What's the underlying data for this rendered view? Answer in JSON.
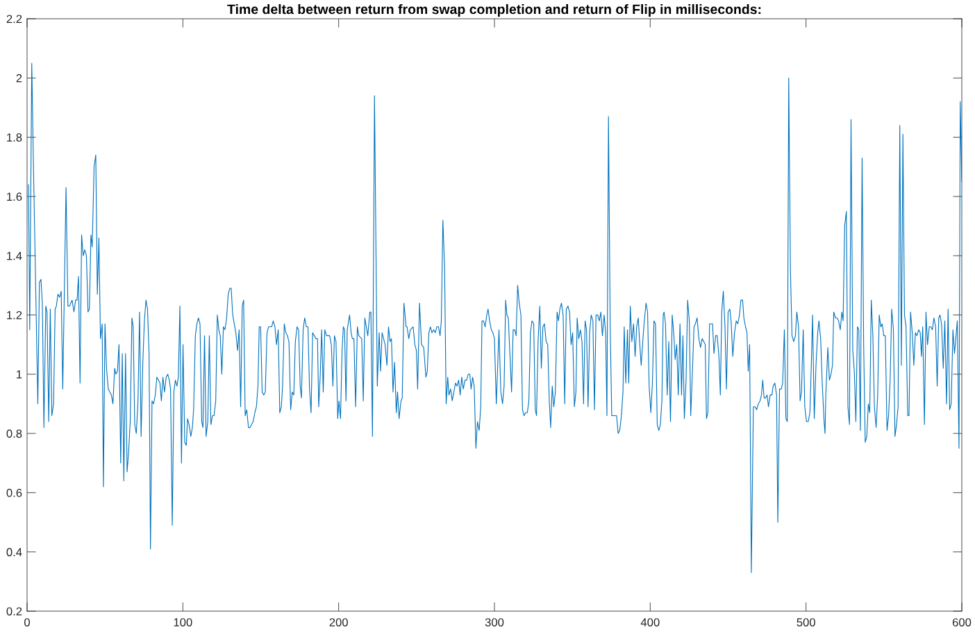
{
  "chart_data": {
    "type": "line",
    "title": "Time delta between return from swap completion and return of Flip in milliseconds:",
    "x": [
      0.9,
      1.7,
      3.0,
      4.2,
      6.9,
      7.9,
      8.9,
      9.8,
      10.8,
      12.0,
      12.8,
      13.9,
      14.9,
      15.9,
      17.0,
      18.0,
      18.8,
      19.8,
      20.9,
      21.9,
      22.9,
      25.0,
      26.2,
      27.2,
      28.9,
      30.1,
      31.1,
      32.1,
      33.0,
      34.0,
      35.0,
      36.0,
      37.0,
      38.1,
      39.1,
      40.0,
      41.0,
      41.8,
      43.0,
      44.1,
      45.1,
      46.1,
      47.1,
      48.2,
      49.0,
      50.0,
      51.0,
      52.1,
      53.1,
      54.1,
      55.1,
      56.2,
      57.0,
      58.0,
      59.0,
      60.1,
      61.1,
      62.1,
      63.2,
      64.2,
      65.2,
      66.2,
      67.3,
      68.1,
      69.1,
      70.1,
      71.2,
      72.2,
      73.2,
      74.3,
      75.3,
      76.3,
      77.3,
      78.3,
      79.2,
      80.2,
      81.2,
      82.3,
      83.3,
      84.3,
      85.3,
      86.2,
      87.2,
      88.2,
      89.3,
      90.3,
      91.3,
      92.1,
      93.2,
      94.2,
      95.2,
      96.2,
      97.1,
      98.1,
      99.1,
      100.1,
      101.2,
      102.2,
      103.0,
      104.0,
      105.1,
      106.1,
      106.9,
      108.0,
      109.0,
      110.0,
      111.0,
      112.1,
      112.9,
      113.9,
      114.9,
      116.0,
      117.0,
      118.0,
      119.0,
      120.0,
      121.1,
      122.1,
      123.1,
      124.0,
      125.0,
      126.0,
      127.0,
      128.1,
      129.1,
      130.1,
      131.0,
      132.0,
      133.0,
      134.0,
      135.1,
      136.1,
      137.1,
      138.1,
      139.0,
      140.0,
      141.0,
      142.1,
      143.1,
      144.1,
      145.1,
      146.2,
      147.2,
      148.2,
      149.0,
      149.9,
      150.9,
      151.9,
      152.9,
      154.0,
      155.0,
      156.0,
      157.0,
      158.0,
      159.1,
      160.1,
      161.2,
      162.2,
      163.2,
      164.0,
      165.1,
      166.1,
      167.1,
      168.1,
      169.2,
      170.2,
      171.2,
      172.2,
      173.3,
      174.3,
      175.3,
      176.1,
      177.2,
      178.2,
      179.3,
      180.3,
      181.3,
      182.3,
      183.3,
      184.4,
      185.4,
      186.4,
      187.2,
      188.2,
      189.1,
      190.1,
      191.1,
      192.2,
      193.2,
      194.2,
      195.3,
      196.3,
      197.3,
      198.3,
      199.4,
      200.2,
      201.2,
      202.2,
      203.0,
      203.8,
      204.7,
      205.5,
      207.0,
      208.0,
      208.8,
      209.8,
      210.9,
      212.0,
      212.9,
      214.8,
      215.8,
      216.8,
      218.7,
      220.0,
      220.7,
      221.7,
      223.0,
      224.8,
      226.0,
      226.9,
      227.9,
      229.8,
      231.0,
      232.0,
      233.0,
      233.9,
      234.9,
      235.9,
      237.0,
      237.8,
      238.8,
      240.0,
      240.8,
      241.9,
      243.3,
      243.9,
      245.0,
      246.0,
      247.8,
      248.9,
      249.9,
      250.7,
      251.9,
      253.2,
      254.6,
      256.0,
      256.9,
      257.9,
      258.9,
      259.9,
      261.0,
      262.0,
      263.0,
      264.1,
      265.1,
      265.9,
      266.9,
      268.0,
      269.0,
      270.0,
      270.8,
      271.9,
      272.9,
      275.0,
      276.0,
      277.0,
      278.0,
      279.0,
      280.0,
      281.1,
      282.1,
      283.2,
      284.2,
      285.0,
      286.0,
      287.0,
      288.1,
      289.1,
      290.2,
      291.2,
      292.0,
      293.0,
      294.0,
      295.1,
      295.9,
      296.9,
      298.0,
      299.0,
      300.0,
      301.2,
      302.9,
      304.1,
      305.2,
      306.2,
      307.2,
      308.0,
      308.9,
      310.0,
      311.0,
      312.0,
      313.0,
      313.9,
      314.9,
      315.9,
      317.0,
      318.0,
      319.0,
      320.0,
      321.1,
      322.1,
      323.1,
      324.1,
      325.2,
      326.2,
      327.0,
      328.0,
      329.1,
      330.1,
      331.1,
      332.1,
      333.2,
      334.2,
      335.2,
      336.1,
      337.1,
      338.1,
      339.1,
      340.2,
      341.1,
      342.0,
      343.0,
      344.1,
      345.1,
      346.1,
      347.2,
      348.2,
      349.2,
      350.2,
      351.3,
      352.3,
      353.1,
      354.1,
      355.2,
      356.2,
      357.2,
      358.2,
      359.1,
      360.1,
      361.1,
      362.1,
      363.2,
      364.2,
      365.2,
      366.3,
      367.3,
      368.3,
      369.3,
      370.4,
      371.4,
      372.2,
      373.2,
      374.3,
      375.3,
      376.3,
      377.4,
      378.4,
      379.4,
      380.4,
      381.5,
      382.5,
      383.3,
      384.3,
      385.4,
      386.2,
      387.2,
      388.2,
      389.3,
      390.3,
      391.3,
      392.3,
      393.3,
      394.2,
      395.2,
      396.2,
      397.3,
      398.3,
      399.3,
      400.4,
      401.4,
      402.4,
      403.4,
      404.5,
      405.5,
      406.5,
      407.5,
      408.3,
      408.9,
      409.8,
      410.9,
      411.9,
      413.0,
      414.1,
      415.2,
      416.0,
      417.0,
      418.0,
      419.1,
      420.1,
      421.0,
      421.9,
      423.0,
      424.0,
      425.1,
      426.0,
      427.1,
      428.1,
      429.0,
      430.1,
      431.2,
      432.3,
      433.3,
      434.4,
      435.3,
      436.1,
      437.0,
      438.1,
      439.2,
      440.0,
      440.9,
      442.0,
      443.0,
      444.1,
      445.0,
      445.9,
      446.9,
      448.0,
      448.9,
      450.0,
      451.1,
      451.9,
      453.0,
      454.1,
      455.2,
      456.2,
      457.3,
      458.2,
      459.3,
      460.1,
      461.2,
      462.1,
      462.9,
      463.8,
      464.9,
      466.2,
      467.3,
      468.3,
      469.4,
      470.5,
      471.4,
      472.2,
      473.1,
      474.0,
      475.0,
      475.9,
      477.0,
      478.1,
      478.9,
      480.0,
      481.1,
      481.9,
      483.0,
      484.1,
      485.0,
      486.1,
      487.1,
      488.0,
      488.9,
      490.0,
      491.0,
      492.1,
      493.2,
      494.1,
      495.2,
      496.2,
      497.1,
      498.2,
      499.2,
      500.3,
      501.4,
      502.5,
      503.4,
      504.2,
      505.3,
      506.4,
      507.5,
      508.3,
      509.4,
      510.4,
      511.6,
      512.2,
      512.7,
      514.0,
      515.0,
      516.0,
      517.0,
      517.8,
      518.9,
      519.9,
      520.9,
      522.0,
      523.0,
      523.8,
      524.8,
      525.9,
      526.9,
      527.9,
      528.9,
      530.0,
      531.0,
      532.0,
      533.0,
      533.9,
      534.9,
      536.0,
      537.0,
      538.0,
      539.0,
      540.0,
      540.9,
      541.9,
      542.9,
      543.9,
      545.0,
      546.0,
      547.0,
      548.0,
      548.9,
      549.9,
      550.9,
      552.0,
      553.0,
      554.0,
      555.0,
      556.1,
      557.1,
      558.1,
      559.1,
      560.2,
      561.2,
      562.2,
      563.2,
      564.2,
      565.3,
      566.1,
      567.1,
      568.2,
      569.2,
      570.2,
      571.2,
      572.3,
      573.3,
      574.1,
      574.9,
      576.0,
      577.0,
      578.0,
      579.1,
      580.1,
      581.1,
      582.1,
      583.2,
      584.2,
      585.2,
      586.0,
      587.0,
      588.1,
      589.1,
      590.2,
      591.2,
      592.2,
      593.2,
      594.3,
      595.3,
      596.3,
      597.1,
      598.2,
      599.0,
      600.0
    ],
    "series": [
      {
        "color": "#0072bd",
        "values": [
          1.64,
          1.15,
          2.05,
          1.67,
          0.9,
          1.31,
          1.32,
          1.24,
          0.82,
          1.23,
          1.21,
          0.84,
          1.22,
          0.86,
          0.9,
          1.22,
          1.23,
          1.27,
          1.26,
          1.28,
          0.95,
          1.63,
          1.23,
          1.23,
          1.25,
          1.21,
          1.25,
          1.25,
          1.33,
          0.97,
          1.47,
          1.4,
          1.42,
          1.4,
          1.21,
          1.22,
          1.47,
          1.43,
          1.7,
          1.74,
          1.27,
          1.46,
          1.12,
          1.17,
          0.62,
          1.17,
          1.02,
          0.95,
          0.94,
          0.93,
          0.9,
          1.02,
          1.0,
          1.01,
          1.1,
          0.7,
          1.07,
          0.64,
          1.07,
          0.67,
          0.74,
          0.84,
          1.19,
          1.16,
          0.83,
          0.8,
          0.91,
          1.21,
          0.79,
          1.04,
          1.18,
          1.25,
          1.22,
          1.07,
          0.41,
          0.91,
          0.9,
          0.93,
          0.99,
          0.98,
          0.97,
          0.91,
          0.99,
          0.94,
          0.99,
          1.0,
          0.98,
          0.95,
          0.49,
          0.94,
          0.98,
          0.96,
          0.99,
          1.23,
          0.7,
          1.1,
          0.77,
          0.76,
          0.85,
          0.83,
          0.79,
          0.82,
          0.88,
          1.13,
          1.17,
          1.19,
          1.17,
          0.84,
          0.82,
          1.13,
          0.79,
          0.84,
          1.13,
          0.83,
          0.86,
          0.86,
          0.91,
          1.2,
          1.15,
          1.13,
          1.0,
          1.16,
          1.15,
          1.19,
          1.27,
          1.29,
          1.29,
          1.2,
          1.17,
          1.14,
          1.08,
          1.15,
          0.89,
          1.23,
          1.25,
          0.86,
          0.88,
          0.82,
          0.82,
          0.83,
          0.84,
          0.87,
          0.89,
          0.96,
          1.16,
          1.16,
          0.94,
          0.93,
          0.94,
          1.14,
          1.16,
          1.16,
          1.16,
          1.18,
          1.16,
          1.1,
          1.15,
          0.87,
          0.89,
          0.96,
          1.17,
          1.14,
          1.13,
          1.11,
          0.88,
          0.94,
          0.93,
          1.11,
          1.16,
          1.15,
          0.96,
          0.92,
          1.15,
          1.19,
          1.16,
          1.16,
          0.95,
          0.87,
          1.14,
          1.13,
          1.12,
          1.12,
          0.89,
          1.0,
          1.15,
          0.94,
          1.15,
          1.13,
          1.13,
          1.13,
          1.1,
          0.96,
          1.13,
          1.11,
          0.85,
          0.91,
          0.85,
          1.08,
          1.16,
          1.15,
          0.91,
          1.15,
          1.2,
          1.14,
          1.12,
          1.12,
          0.89,
          1.16,
          1.13,
          1.12,
          0.91,
          1.19,
          1.13,
          1.21,
          1.21,
          0.79,
          1.94,
          0.96,
          1.14,
          1.01,
          1.14,
          1.1,
          1.03,
          1.16,
          1.11,
          1.12,
          0.94,
          1.04,
          0.87,
          0.94,
          0.85,
          0.91,
          0.92,
          1.24,
          1.16,
          1.16,
          1.12,
          1.15,
          1.16,
          1.1,
          1.08,
          0.95,
          1.24,
          1.1,
          1.09,
          0.99,
          1.01,
          1.14,
          1.16,
          1.14,
          1.15,
          1.14,
          1.16,
          1.16,
          1.13,
          1.18,
          1.52,
          1.36,
          0.9,
          0.99,
          0.93,
          0.95,
          0.91,
          0.97,
          0.96,
          0.98,
          0.93,
          0.99,
          0.95,
          0.98,
          0.98,
          1.0,
          1.0,
          0.95,
          0.99,
          0.96,
          0.75,
          0.84,
          0.81,
          0.89,
          1.18,
          1.18,
          1.16,
          1.2,
          1.22,
          1.18,
          1.15,
          1.14,
          1.12,
          0.9,
          1.15,
          0.94,
          0.9,
          0.96,
          1.25,
          1.2,
          1.19,
          1.06,
          0.94,
          1.15,
          1.15,
          1.13,
          1.3,
          1.24,
          1.2,
          0.88,
          0.86,
          0.87,
          0.87,
          0.91,
          1.14,
          1.18,
          1.17,
          0.88,
          0.86,
          1.11,
          1.23,
          1.02,
          1.16,
          1.17,
          1.11,
          1.1,
          0.91,
          0.82,
          0.96,
          0.89,
          0.94,
          1.21,
          1.18,
          1.22,
          1.24,
          1.2,
          0.9,
          1.22,
          1.23,
          1.21,
          1.1,
          1.14,
          0.89,
          0.94,
          1.19,
          1.12,
          1.15,
          1.11,
          0.9,
          1.18,
          1.15,
          0.89,
          1.14,
          1.2,
          1.18,
          0.88,
          1.2,
          1.2,
          1.18,
          1.21,
          1.13,
          1.2,
          1.14,
          0.86,
          1.87,
          1.16,
          0.86,
          0.86,
          0.86,
          0.86,
          0.8,
          0.81,
          0.86,
          0.94,
          1.16,
          0.97,
          1.15,
          0.97,
          1.23,
          1.11,
          1.17,
          1.06,
          1.16,
          1.19,
          1.1,
          1.03,
          1.11,
          1.18,
          1.24,
          1.21,
          0.96,
          0.87,
          0.97,
          1.18,
          1.17,
          0.83,
          0.81,
          0.83,
          0.91,
          1.2,
          1.21,
          1.17,
          0.93,
          1.11,
          0.84,
          1.2,
          1.13,
          1.05,
          1.1,
          0.93,
          1.17,
          0.93,
          1.13,
          0.85,
          0.98,
          1.25,
          1.18,
          0.86,
          1.01,
          1.16,
          1.17,
          1.19,
          1.12,
          1.09,
          1.12,
          1.11,
          1.1,
          0.85,
          0.87,
          1.17,
          1.17,
          1.17,
          1.07,
          1.13,
          1.13,
          1.06,
          0.93,
          1.21,
          1.28,
          1.16,
          0.95,
          1.21,
          1.22,
          1.18,
          1.06,
          1.14,
          1.18,
          1.17,
          1.2,
          1.25,
          1.25,
          1.19,
          1.16,
          1.14,
          1.01,
          1.1,
          0.33,
          0.89,
          0.89,
          0.88,
          0.9,
          0.91,
          0.93,
          0.98,
          0.92,
          0.92,
          0.93,
          0.89,
          0.93,
          0.93,
          0.96,
          0.97,
          0.93,
          0.5,
          0.95,
          0.95,
          0.97,
          1.15,
          0.85,
          0.84,
          2.0,
          1.35,
          1.13,
          1.11,
          1.13,
          1.21,
          1.16,
          0.91,
          0.94,
          1.15,
          0.89,
          0.84,
          0.84,
          0.87,
          1.03,
          1.2,
          0.85,
          1.03,
          1.14,
          1.18,
          1.12,
          0.97,
          0.84,
          0.8,
          0.93,
          1.09,
          0.98,
          1.0,
          1.03,
          1.21,
          1.19,
          1.19,
          1.18,
          1.15,
          1.21,
          1.18,
          1.5,
          1.55,
          0.89,
          0.83,
          1.86,
          1.08,
          1.01,
          0.84,
          1.16,
          1.15,
          0.81,
          1.73,
          1.1,
          0.77,
          0.79,
          0.9,
          0.87,
          1.25,
          1.13,
          0.89,
          0.82,
          0.93,
          1.2,
          1.16,
          1.17,
          1.13,
          1.13,
          0.81,
          0.86,
          0.98,
          1.22,
          1.15,
          0.79,
          0.83,
          0.89,
          1.84,
          1.03,
          1.81,
          1.2,
          1.16,
          0.86,
          0.86,
          1.21,
          1.14,
          1.03,
          1.14,
          1.13,
          1.15,
          1.14,
          1.06,
          1.16,
          0.83,
          1.21,
          1.1,
          1.16,
          1.16,
          1.15,
          1.19,
          1.16,
          0.96,
          1.19,
          1.2,
          1.17,
          1.02,
          1.18,
          0.9,
          1.22,
          0.88,
          0.9,
          1.15,
          1.07,
          1.13,
          1.18,
          0.75,
          1.92,
          1.65
        ]
      }
    ],
    "xlim": [
      0,
      600
    ],
    "ylim": [
      0.2,
      2.2
    ],
    "xticks": [
      0,
      100,
      200,
      300,
      400,
      500,
      600
    ],
    "yticks": [
      0.2,
      0.4,
      0.6,
      0.8,
      1,
      1.2,
      1.4,
      1.6,
      1.8,
      2,
      2.2
    ]
  }
}
